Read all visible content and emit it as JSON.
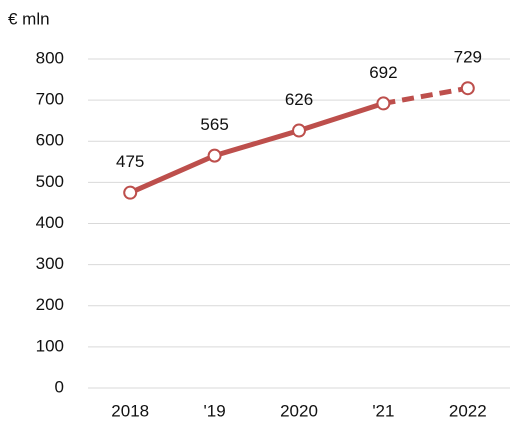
{
  "chart_data": {
    "type": "line",
    "y_label": "€ mln",
    "categories": [
      "2018",
      "'19",
      "2020",
      "'21",
      "2022"
    ],
    "values": [
      475,
      565,
      626,
      692,
      729
    ],
    "color": "#bd4f4c",
    "dash_from": 3,
    "ylim": [
      0,
      800
    ],
    "yticks": [
      0,
      100,
      200,
      300,
      400,
      500,
      600,
      700,
      800
    ],
    "grid": true
  }
}
